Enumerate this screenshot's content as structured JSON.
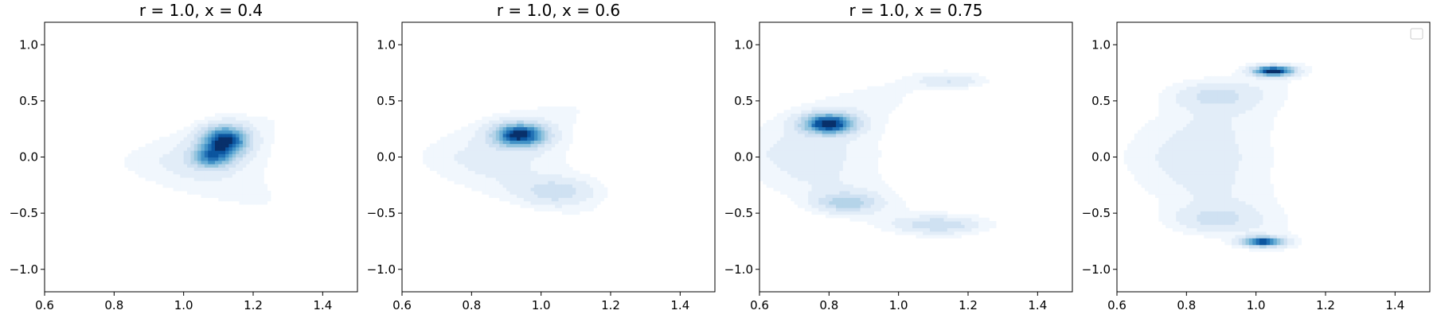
{
  "chart_data": [
    {
      "type": "contour",
      "title": "r = 1.0, x = 0.4",
      "xlim": [
        0.6,
        1.5
      ],
      "ylim": [
        -1.2,
        1.2
      ],
      "xticks": [
        0.6,
        0.8,
        1.0,
        1.2,
        1.4
      ],
      "yticks": [
        -1.0,
        -0.5,
        0.0,
        0.5,
        1.0
      ],
      "xtick_labels": [
        "0.6",
        "0.8",
        "1.0",
        "1.2",
        "1.4"
      ],
      "ytick_labels": [
        "−1.0",
        "−0.5",
        "0.0",
        "0.5",
        "1.0"
      ],
      "density_modes": [
        {
          "x": 1.12,
          "y": 0.15,
          "sx": 0.045,
          "sy": 0.09,
          "w": 1.0
        },
        {
          "x": 1.08,
          "y": 0.0,
          "sx": 0.04,
          "sy": 0.07,
          "w": 0.6
        }
      ],
      "outer_shape": {
        "x0": 0.93,
        "tip_x": 1.42,
        "y_top": 0.42,
        "y_bottom": -0.5,
        "inner_x": 1.22
      }
    },
    {
      "type": "contour",
      "title": "r = 1.0, x = 0.6",
      "xlim": [
        0.6,
        1.5
      ],
      "ylim": [
        -1.2,
        1.2
      ],
      "xticks": [
        0.6,
        0.8,
        1.0,
        1.2,
        1.4
      ],
      "yticks": [
        -1.0,
        -0.5,
        0.0,
        0.5,
        1.0
      ],
      "xtick_labels": [
        "0.6",
        "0.8",
        "1.0",
        "1.2",
        "1.4"
      ],
      "ytick_labels": [
        "−1.0",
        "−0.5",
        "0.0",
        "0.5",
        "1.0"
      ],
      "density_modes": [
        {
          "x": 0.94,
          "y": 0.2,
          "sx": 0.05,
          "sy": 0.07,
          "w": 1.0
        },
        {
          "x": 1.05,
          "y": -0.3,
          "sx": 0.07,
          "sy": 0.08,
          "w": 0.25
        }
      ],
      "outer_shape": {
        "x0": 0.78,
        "tip_x": 1.32,
        "y_top": 0.55,
        "y_bottom": -0.55,
        "inner_x": 1.02
      }
    },
    {
      "type": "contour",
      "title": "r = 1.0, x = 0.75",
      "xlim": [
        0.6,
        1.5
      ],
      "ylim": [
        -1.2,
        1.2
      ],
      "xticks": [
        0.6,
        0.8,
        1.0,
        1.2,
        1.4
      ],
      "yticks": [
        -1.0,
        -0.5,
        0.0,
        0.5,
        1.0
      ],
      "xtick_labels": [
        "0.6",
        "0.8",
        "1.0",
        "1.2",
        "1.4"
      ],
      "ytick_labels": [
        "−1.0",
        "−0.5",
        "0.0",
        "0.5",
        "1.0"
      ],
      "density_modes": [
        {
          "x": 0.8,
          "y": 0.3,
          "sx": 0.05,
          "sy": 0.06,
          "w": 1.0
        },
        {
          "x": 0.85,
          "y": -0.4,
          "sx": 0.06,
          "sy": 0.06,
          "w": 0.35
        },
        {
          "x": 1.12,
          "y": -0.6,
          "sx": 0.08,
          "sy": 0.05,
          "w": 0.3
        },
        {
          "x": 1.15,
          "y": 0.68,
          "sx": 0.06,
          "sy": 0.04,
          "w": 0.2
        }
      ],
      "outer_shape": {
        "x0": 0.62,
        "tip_x": 1.33,
        "y_top": 0.78,
        "y_bottom": -0.72,
        "inner_x": 0.95
      }
    },
    {
      "type": "contour",
      "title": "",
      "xlim": [
        0.6,
        1.5
      ],
      "ylim": [
        -1.2,
        1.2
      ],
      "xticks": [
        0.6,
        0.8,
        1.0,
        1.2,
        1.4
      ],
      "yticks": [
        -1.0,
        -0.5,
        0.0,
        0.5,
        1.0
      ],
      "xtick_labels": [
        "0.6",
        "0.8",
        "1.0",
        "1.2",
        "1.4"
      ],
      "ytick_labels": [
        "−1.0",
        "−0.5",
        "0.0",
        "0.5",
        "1.0"
      ],
      "legend": {
        "placement": "top-right",
        "entries": []
      },
      "density_modes": [
        {
          "x": 1.05,
          "y": 0.77,
          "sx": 0.04,
          "sy": 0.03,
          "w": 1.0
        },
        {
          "x": 1.02,
          "y": -0.75,
          "sx": 0.04,
          "sy": 0.03,
          "w": 0.9
        },
        {
          "x": 0.88,
          "y": 0.55,
          "sx": 0.08,
          "sy": 0.08,
          "w": 0.2
        },
        {
          "x": 0.88,
          "y": -0.55,
          "sx": 0.08,
          "sy": 0.08,
          "w": 0.2
        }
      ],
      "outer_shape": {
        "x0": 0.8,
        "tip_x": 1.32,
        "y_top": 0.88,
        "y_bottom": -0.88,
        "inner_x": 0.9
      }
    }
  ],
  "colors": {
    "levels": [
      "#f1f7fd",
      "#e2edf8",
      "#cfe1f2",
      "#b5d4e9",
      "#93c4de",
      "#6aaed6",
      "#4292c6",
      "#2271b5",
      "#0b559f",
      "#08306b"
    ],
    "axis": "#000000",
    "background": "#ffffff"
  }
}
